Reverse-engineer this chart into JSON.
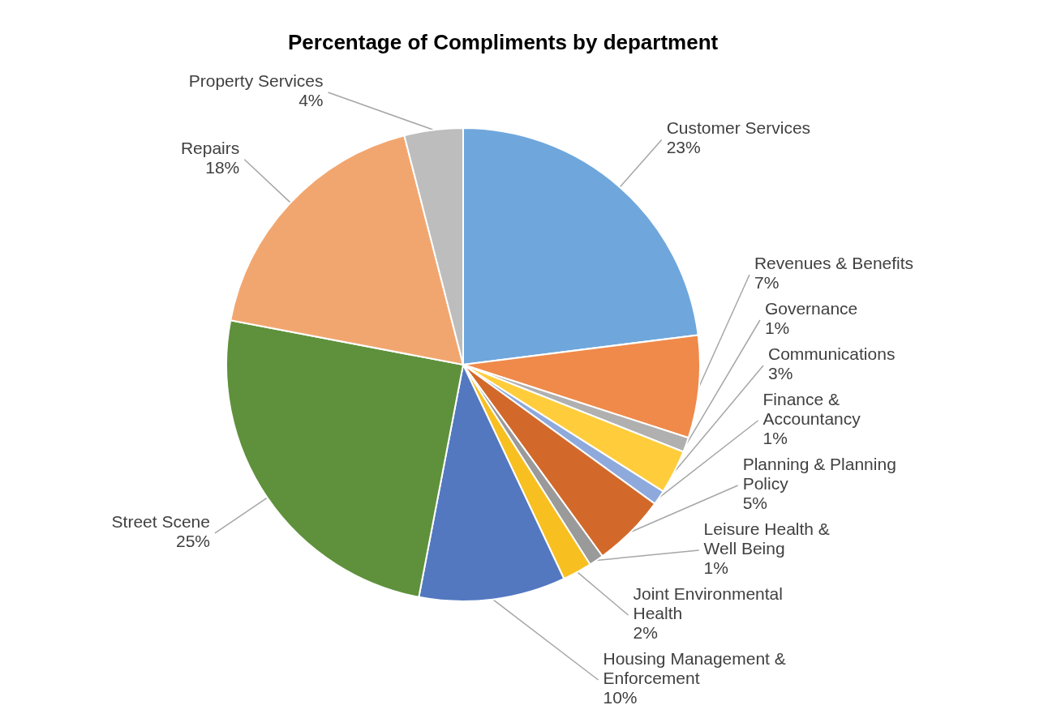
{
  "chart_data": {
    "type": "pie",
    "title": "Percentage of Compliments by department",
    "categories": [
      "Customer Services",
      "Revenues & Benefits",
      "Governance",
      "Communications",
      "Finance & Accountancy",
      "Planning & Planning Policy",
      "Leisure Health & Well Being",
      "Joint Environmental Health",
      "Housing Management & Enforcement",
      "Street Scene",
      "Repairs",
      "Property Services"
    ],
    "values": [
      23,
      7,
      1,
      3,
      1,
      5,
      1,
      2,
      10,
      25,
      18,
      4
    ],
    "colors": [
      "#6fa7dc",
      "#ef8a4a",
      "#b0b0b0",
      "#ffcd3c",
      "#8eaadc",
      "#d2692a",
      "#9a9a9a",
      "#f8bf20",
      "#5378c0",
      "#5f913c",
      "#f2a66f",
      "#bdbdbd"
    ],
    "value_labels": [
      "23%",
      "7%",
      "1%",
      "3%",
      "1%",
      "5%",
      "1%",
      "2%",
      "10%",
      "25%",
      "18%",
      "4%"
    ]
  }
}
